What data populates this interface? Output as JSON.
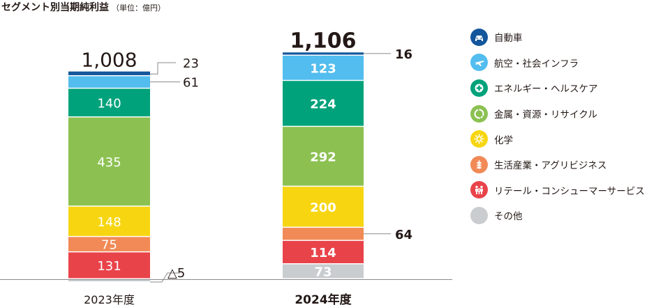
{
  "title": "セグメント別当期純利益",
  "unit": "（単位：億円）",
  "colors": {
    "automotive": "#14569b",
    "aerospace": "#52bdee",
    "energy": "#00a27b",
    "metals": "#8cc152",
    "chemicals": "#f7d611",
    "lifestyle": "#f18a56",
    "retail": "#e9434a",
    "other": "#c9cdd0"
  },
  "legend": [
    {
      "key": "automotive",
      "label": "自動車",
      "icon": "car-icon"
    },
    {
      "key": "aerospace",
      "label": "航空・社会インフラ",
      "icon": "airplane-icon"
    },
    {
      "key": "energy",
      "label": "エネルギー・ヘルスケア",
      "icon": "medical-cross-icon"
    },
    {
      "key": "metals",
      "label": "金属・資源・リサイクル",
      "icon": "recycle-icon"
    },
    {
      "key": "chemicals",
      "label": "化学",
      "icon": "sun-gear-icon"
    },
    {
      "key": "lifestyle",
      "label": "生活産業・アグリビジネス",
      "icon": "wheat-icon"
    },
    {
      "key": "retail",
      "label": "リテール・コンシューマーサービス",
      "icon": "people-icon"
    },
    {
      "key": "other",
      "label": "その他",
      "icon": ""
    }
  ],
  "chart_data": {
    "type": "bar",
    "stacked": true,
    "categories": [
      "2023年度",
      "2024年度"
    ],
    "totals": [
      "1,008",
      "1,106"
    ],
    "series": [
      {
        "key": "automotive",
        "name": "自動車",
        "values": [
          23,
          16
        ],
        "labels": [
          "23",
          "16"
        ]
      },
      {
        "key": "aerospace",
        "name": "航空・社会インフラ",
        "values": [
          61,
          123
        ],
        "labels": [
          "61",
          "123"
        ]
      },
      {
        "key": "energy",
        "name": "エネルギー・ヘルスケア",
        "values": [
          140,
          224
        ],
        "labels": [
          "140",
          "224"
        ]
      },
      {
        "key": "metals",
        "name": "金属・資源・リサイクル",
        "values": [
          435,
          292
        ],
        "labels": [
          "435",
          "292"
        ]
      },
      {
        "key": "chemicals",
        "name": "化学",
        "values": [
          148,
          200
        ],
        "labels": [
          "148",
          "200"
        ]
      },
      {
        "key": "lifestyle",
        "name": "生活産業・アグリビジネス",
        "values": [
          75,
          64
        ],
        "labels": [
          "75",
          "64"
        ]
      },
      {
        "key": "retail",
        "name": "リテール・コンシューマーサービス",
        "values": [
          131,
          114
        ],
        "labels": [
          "131",
          "114"
        ]
      },
      {
        "key": "other",
        "name": "その他",
        "values": [
          -5,
          73
        ],
        "labels": [
          "△5",
          "73"
        ]
      }
    ]
  }
}
